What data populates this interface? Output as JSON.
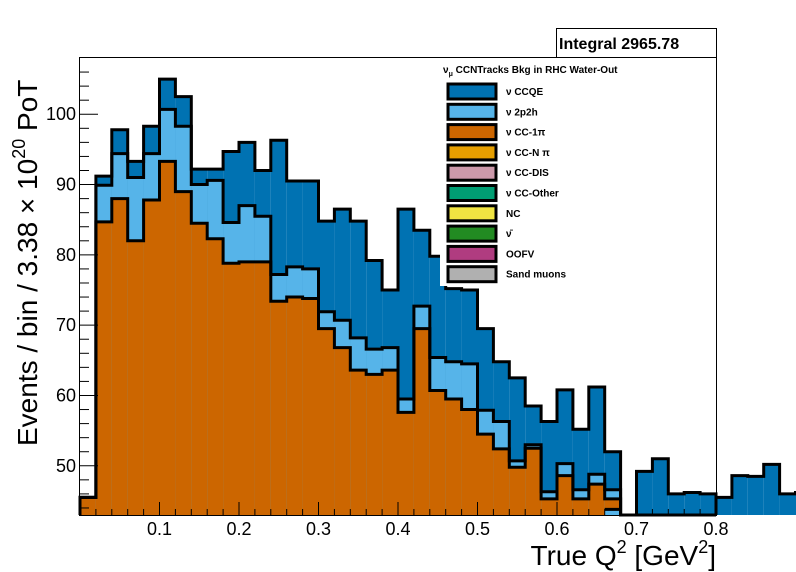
{
  "chart_data": {
    "type": "stacked-histogram",
    "title": "ν_μ CCNTracks Bkg in RHC Water-Out",
    "title_parts": {
      "nu": "ν",
      "sub": "μ",
      "rest": " CCNTracks Bkg in RHC Water-Out"
    },
    "xlabel_parts": {
      "main": "True Q",
      "sup": "2",
      "bracket_open": " [GeV",
      "unit_sup": "2",
      "bracket_close": "]"
    },
    "ylabel_parts": {
      "main": "Events / bin / 3.38 × 10",
      "sup": "20",
      "rest": " PoT"
    },
    "stats": {
      "label": "Integral",
      "value": "2965.78"
    },
    "xlim": [
      0.0,
      0.8
    ],
    "ylim": [
      43,
      108
    ],
    "xticks": [
      0.1,
      0.2,
      0.3,
      0.4,
      0.5,
      0.6,
      0.7,
      0.8
    ],
    "xtick_labels": [
      "0.1",
      "0.2",
      "0.3",
      "0.4",
      "0.5",
      "0.6",
      "0.7",
      "0.8"
    ],
    "yticks": [
      50,
      60,
      70,
      80,
      90,
      100
    ],
    "ytick_labels": [
      "50",
      "60",
      "70",
      "80",
      "90",
      "100"
    ],
    "bin_width": 0.02,
    "bin_edges_start": 0.0,
    "legend": [
      {
        "name": "ν CCQE",
        "color": "#0072b2"
      },
      {
        "name": "ν 2p2h",
        "color": "#56b4e9"
      },
      {
        "name": "ν CC-1π",
        "color": "#cc6600"
      },
      {
        "name": "ν CC-N π",
        "color": "#e69f00"
      },
      {
        "name": "ν CC-DIS",
        "color": "#cc99aa"
      },
      {
        "name": "ν CC-Other",
        "color": "#009e73"
      },
      {
        "name": "NC",
        "color": "#f0e442"
      },
      {
        "name": "ν̄",
        "color": "#228b22"
      },
      {
        "name": "OOFV",
        "color": "#b03c80"
      },
      {
        "name": "Sand muons",
        "color": "#b0b0b0"
      }
    ],
    "series": [
      {
        "name": "ν CC-1π",
        "color": "#cc6600",
        "cumulative_values": [
          45.5,
          84.7,
          88.0,
          82.0,
          87.8,
          93.3,
          89.0,
          84.5,
          82.3,
          78.8,
          79.0,
          79.0,
          73.4,
          74.0,
          73.8,
          69.5,
          66.8,
          63.6,
          63.0,
          63.6,
          57.6,
          69.5,
          60.7,
          59.5,
          58.0,
          54.5,
          52.4,
          49.8,
          52.5,
          45.3,
          48.6,
          45.3,
          47.4,
          45.3,
          43.0,
          43.0,
          43.0,
          43.0,
          43.0,
          43.0
        ]
      },
      {
        "name": "ν 2p2h",
        "color": "#56b4e9",
        "cumulative_values": [
          45.5,
          89.9,
          94.4,
          91.0,
          94.4,
          100.7,
          98.3,
          90.0,
          90.6,
          84.6,
          87.0,
          85.5,
          77.2,
          78.3,
          78.0,
          71.9,
          70.7,
          68.2,
          66.6,
          66.8,
          59.5,
          72.7,
          65.4,
          64.8,
          64.5,
          57.9,
          56.3,
          50.7,
          53.0,
          46.3,
          50.3,
          46.6,
          48.8,
          46.6,
          43.0,
          43.0,
          43.0,
          43.0,
          43.0,
          43.0
        ]
      },
      {
        "name": "ν CCQE",
        "color": "#0072b2",
        "cumulative_values": [
          45.5,
          91.2,
          97.8,
          93.3,
          98.3,
          105.0,
          102.5,
          92.2,
          92.2,
          94.7,
          96.0,
          92.0,
          96.3,
          90.5,
          90.5,
          84.8,
          86.5,
          84.8,
          79.2,
          75.0,
          86.5,
          83.5,
          79.8,
          75.2,
          75.0,
          69.5,
          64.8,
          62.5,
          58.5,
          56.3,
          60.8,
          55.2,
          61.2,
          52.0,
          43.0,
          49.2,
          51.0,
          46.0,
          46.2,
          46.0
        ]
      }
    ],
    "extra_bins": [
      {
        "x0": 0.64,
        "x1": 0.66,
        "top": 43.0
      },
      {
        "x0": 0.66,
        "x1": 0.68,
        "top": 45.5,
        "under": 43.8
      }
    ],
    "tail_values": [
      45.5,
      48.6,
      48.5,
      50.2,
      46.0,
      46.2,
      45.9,
      47.0
    ]
  }
}
